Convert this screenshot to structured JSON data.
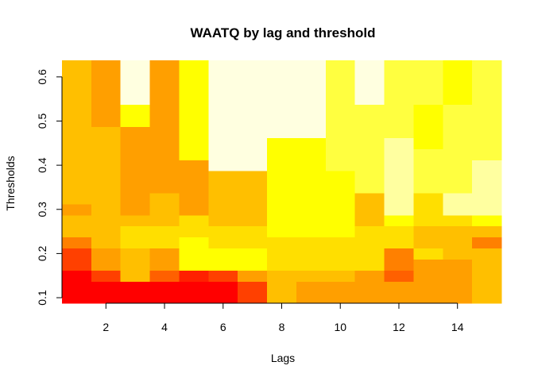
{
  "chart_data": {
    "type": "heatmap",
    "title": "WAATQ by lag and threshold",
    "xlabel": "Lags",
    "ylabel": "Thresholds",
    "x": [
      1,
      2,
      3,
      4,
      5,
      6,
      7,
      8,
      9,
      10,
      11,
      12,
      13,
      14,
      15
    ],
    "y": [
      0.1,
      0.125,
      0.15,
      0.175,
      0.2,
      0.225,
      0.25,
      0.275,
      0.3,
      0.325,
      0.35,
      0.375,
      0.4,
      0.425,
      0.45,
      0.475,
      0.5,
      0.525,
      0.55,
      0.575,
      0.6,
      0.625
    ],
    "xlim": [
      0.5,
      15.5
    ],
    "ylim": [
      0.0875,
      0.6375
    ],
    "x_ticks": [
      2,
      4,
      6,
      8,
      10,
      12,
      14
    ],
    "x_tick_labels": [
      "2",
      "4",
      "6",
      "8",
      "10",
      "12",
      "14"
    ],
    "y_ticks": [
      0.1,
      0.2,
      0.3,
      0.4,
      0.5,
      0.6
    ],
    "y_tick_labels": [
      "0.1",
      "0.2",
      "0.3",
      "0.4",
      "0.5",
      "0.6"
    ],
    "color_palette": [
      "#FF0000",
      "#FF2000",
      "#FF4000",
      "#FF6000",
      "#FF8000",
      "#FF9F00",
      "#FFBF00",
      "#FFDF00",
      "#FFFF00",
      "#FFFF40",
      "#FFFFA0",
      "#FFFFE0"
    ],
    "values": [
      [
        0,
        0,
        0,
        0,
        0,
        0,
        2,
        6,
        5,
        5,
        5,
        5,
        5,
        5,
        6
      ],
      [
        0,
        0,
        0,
        0,
        0,
        0,
        2,
        6,
        5,
        5,
        5,
        5,
        5,
        5,
        6
      ],
      [
        0,
        2,
        6,
        3,
        1,
        2,
        5,
        6,
        6,
        6,
        5,
        3,
        5,
        5,
        6
      ],
      [
        2,
        5,
        6,
        5,
        8,
        8,
        8,
        7,
        7,
        7,
        7,
        4,
        5,
        5,
        6
      ],
      [
        2,
        5,
        6,
        5,
        8,
        8,
        8,
        7,
        7,
        7,
        7,
        4,
        7,
        6,
        6
      ],
      [
        4,
        6,
        7,
        7,
        8,
        7,
        7,
        7,
        7,
        7,
        7,
        7,
        6,
        6,
        4
      ],
      [
        6,
        6,
        7,
        7,
        7,
        7,
        7,
        8,
        8,
        8,
        7,
        7,
        6,
        6,
        6
      ],
      [
        6,
        6,
        6,
        6,
        7,
        6,
        6,
        8,
        8,
        8,
        6,
        8,
        7,
        7,
        8
      ],
      [
        5,
        6,
        5,
        6,
        5,
        6,
        6,
        8,
        8,
        8,
        6,
        10,
        7,
        10,
        10
      ],
      [
        6,
        6,
        5,
        6,
        5,
        6,
        6,
        8,
        8,
        8,
        6,
        10,
        7,
        10,
        10
      ],
      [
        6,
        6,
        5,
        5,
        5,
        6,
        6,
        8,
        8,
        8,
        9,
        10,
        9,
        9,
        10
      ],
      [
        6,
        6,
        5,
        5,
        5,
        6,
        6,
        8,
        8,
        8,
        9,
        10,
        9,
        9,
        10
      ],
      [
        6,
        6,
        5,
        5,
        5,
        11,
        11,
        8,
        8,
        9,
        9,
        10,
        9,
        9,
        10
      ],
      [
        6,
        6,
        5,
        5,
        8,
        11,
        11,
        8,
        8,
        9,
        9,
        10,
        9,
        9,
        9
      ],
      [
        6,
        6,
        5,
        5,
        8,
        11,
        11,
        8,
        8,
        9,
        9,
        10,
        8,
        9,
        9
      ],
      [
        6,
        6,
        5,
        5,
        8,
        11,
        11,
        11,
        11,
        9,
        9,
        9,
        8,
        9,
        9
      ],
      [
        6,
        5,
        8,
        5,
        8,
        11,
        11,
        11,
        11,
        9,
        9,
        9,
        8,
        9,
        9
      ],
      [
        6,
        5,
        8,
        5,
        8,
        11,
        11,
        11,
        11,
        9,
        9,
        9,
        8,
        9,
        9
      ],
      [
        6,
        5,
        11,
        5,
        8,
        11,
        11,
        11,
        11,
        9,
        11,
        9,
        9,
        8,
        9
      ],
      [
        6,
        5,
        11,
        5,
        8,
        11,
        11,
        11,
        11,
        9,
        11,
        9,
        9,
        8,
        9
      ],
      [
        6,
        5,
        11,
        5,
        8,
        11,
        11,
        11,
        11,
        9,
        11,
        9,
        9,
        8,
        9
      ],
      [
        6,
        5,
        11,
        5,
        8,
        11,
        11,
        11,
        11,
        9,
        11,
        9,
        9,
        8,
        9
      ]
    ]
  }
}
